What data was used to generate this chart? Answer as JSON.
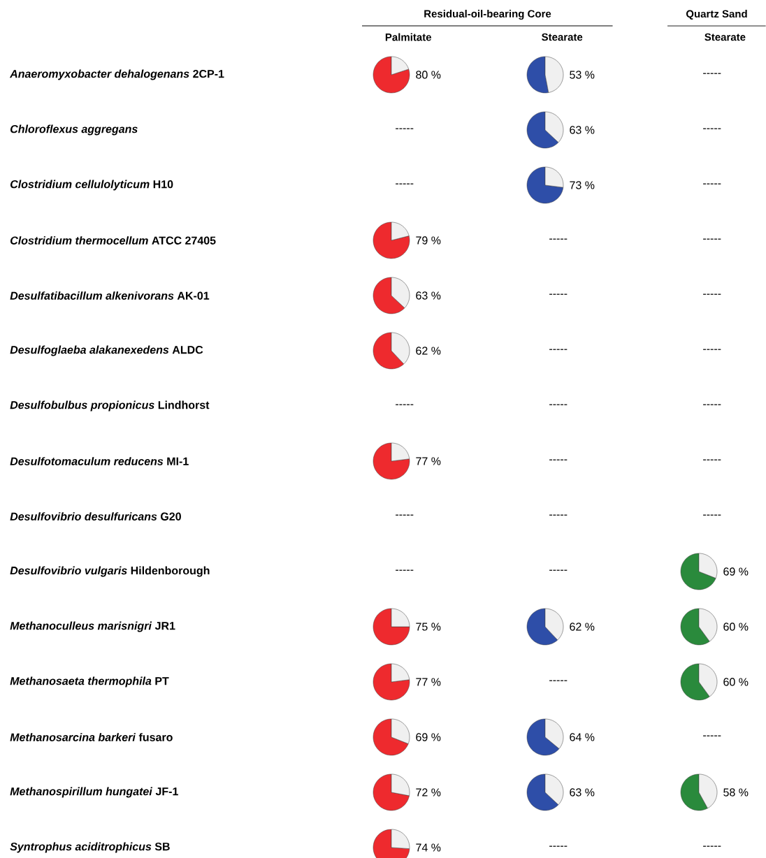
{
  "chart_data": [
    {
      "type": "other",
      "categories": [
        "Palmitate",
        "Stearate",
        "Stearate"
      ],
      "annotations": [
        "Residual-oil-bearing Core",
        "Quartz Sand"
      ],
      "y_categories": [
        "*Anaeromyxobacter dehalogenans* 2CP-1",
        "*Chloroflexus aggregans*",
        "*Clostridium cellulolyticum* H10",
        "*Clostridium thermocellum* ATCC 27405",
        "*Desulfatibacillum alkenivorans* AK-01",
        "*Desulfoglaeba alakanexedens* ALDC",
        "*Desulfobulbus propionicus* Lindhorst",
        "*Desulfotomaculum reducens* MI-1",
        "*Desulfovibrio desulfuricans* G20",
        "*Desulfovibrio vulgaris* Hildenborough",
        "*Methanoculleus marisnigri* JR1",
        "*Methanosaeta thermophila* PT",
        "*Methanosarcina barkeri* fusaro",
        "*Methanospirillum hungatei* JF-1",
        "*Syntrophus aciditrophicus* SB"
      ],
      "cell_labels": [
        [
          null,
          null,
          "-----"
        ],
        [
          "-----",
          null,
          "-----"
        ],
        [
          "-----",
          null,
          "-----"
        ],
        [
          null,
          "-----",
          "-----"
        ],
        [
          null,
          "-----",
          "-----"
        ],
        [
          null,
          "-----",
          "-----"
        ],
        [
          "-----",
          "-----",
          "-----"
        ],
        [
          null,
          "-----",
          "-----"
        ],
        [
          "-----",
          "-----",
          "-----"
        ],
        [
          "-----",
          "-----",
          null
        ],
        [
          null,
          null,
          null
        ],
        [
          null,
          "-----",
          null
        ],
        [
          null,
          null,
          "-----"
        ],
        [
          null,
          null,
          null
        ],
        [
          null,
          "-----",
          "-----"
        ]
      ]
    },
    {
      "type": "pie",
      "categories": [
        null,
        null
      ],
      "values": [
        80,
        20
      ],
      "colors": [
        "#ee2a2e",
        "#f0f0f0"
      ],
      "annotations": [
        "80 %"
      ]
    },
    {
      "type": "pie",
      "categories": [
        null,
        null
      ],
      "values": [
        53,
        47
      ],
      "colors": [
        "#2e4ea8",
        "#f0f0f0"
      ],
      "annotations": [
        "53 %"
      ]
    },
    {
      "type": "pie",
      "categories": [
        null,
        null
      ],
      "values": [
        63,
        37
      ],
      "colors": [
        "#2e4ea8",
        "#f0f0f0"
      ],
      "annotations": [
        "63 %"
      ]
    },
    {
      "type": "pie",
      "categories": [
        null,
        null
      ],
      "values": [
        73,
        27
      ],
      "colors": [
        "#2e4ea8",
        "#f0f0f0"
      ],
      "annotations": [
        "73 %"
      ]
    },
    {
      "type": "pie",
      "categories": [
        null,
        null
      ],
      "values": [
        79,
        21
      ],
      "colors": [
        "#ee2a2e",
        "#f0f0f0"
      ],
      "annotations": [
        "79 %"
      ]
    },
    {
      "type": "pie",
      "categories": [
        null,
        null
      ],
      "values": [
        63,
        37
      ],
      "colors": [
        "#ee2a2e",
        "#f0f0f0"
      ],
      "annotations": [
        "63 %"
      ]
    },
    {
      "type": "pie",
      "categories": [
        null,
        null
      ],
      "values": [
        62,
        38
      ],
      "colors": [
        "#ee2a2e",
        "#f0f0f0"
      ],
      "annotations": [
        "62 %"
      ]
    },
    {
      "type": "pie",
      "categories": [
        null,
        null
      ],
      "values": [
        77,
        23
      ],
      "colors": [
        "#ee2a2e",
        "#f0f0f0"
      ],
      "annotations": [
        "77 %"
      ]
    },
    {
      "type": "pie",
      "categories": [
        null,
        null
      ],
      "values": [
        69,
        31
      ],
      "colors": [
        "#2a8a3c",
        "#f0f0f0"
      ],
      "annotations": [
        "69 %"
      ]
    },
    {
      "type": "pie",
      "categories": [
        null,
        null
      ],
      "values": [
        75,
        25
      ],
      "colors": [
        "#ee2a2e",
        "#f0f0f0"
      ],
      "annotations": [
        "75 %"
      ]
    },
    {
      "type": "pie",
      "categories": [
        null,
        null
      ],
      "values": [
        62,
        38
      ],
      "colors": [
        "#2e4ea8",
        "#f0f0f0"
      ],
      "annotations": [
        "62 %"
      ]
    },
    {
      "type": "pie",
      "categories": [
        null,
        null
      ],
      "values": [
        60,
        40
      ],
      "colors": [
        "#2a8a3c",
        "#f0f0f0"
      ],
      "annotations": [
        "60 %"
      ]
    },
    {
      "type": "pie",
      "categories": [
        null,
        null
      ],
      "values": [
        77,
        23
      ],
      "colors": [
        "#ee2a2e",
        "#f0f0f0"
      ],
      "annotations": [
        "77 %"
      ]
    },
    {
      "type": "pie",
      "categories": [
        null,
        null
      ],
      "values": [
        60,
        40
      ],
      "colors": [
        "#2a8a3c",
        "#f0f0f0"
      ],
      "annotations": [
        "60 %"
      ]
    },
    {
      "type": "pie",
      "categories": [
        null,
        null
      ],
      "values": [
        69,
        31
      ],
      "colors": [
        "#ee2a2e",
        "#f0f0f0"
      ],
      "annotations": [
        "69 %"
      ]
    },
    {
      "type": "pie",
      "categories": [
        null,
        null
      ],
      "values": [
        64,
        36
      ],
      "colors": [
        "#2e4ea8",
        "#f0f0f0"
      ],
      "annotations": [
        "64 %"
      ]
    },
    {
      "type": "pie",
      "categories": [
        null,
        null
      ],
      "values": [
        72,
        28
      ],
      "colors": [
        "#ee2a2e",
        "#f0f0f0"
      ],
      "annotations": [
        "72 %"
      ]
    },
    {
      "type": "pie",
      "categories": [
        null,
        null
      ],
      "values": [
        63,
        37
      ],
      "colors": [
        "#2e4ea8",
        "#f0f0f0"
      ],
      "annotations": [
        "63 %"
      ]
    },
    {
      "type": "pie",
      "categories": [
        null,
        null
      ],
      "values": [
        58,
        42
      ],
      "colors": [
        "#2a8a3c",
        "#f0f0f0"
      ],
      "annotations": [
        "58 %"
      ]
    },
    {
      "type": "pie",
      "categories": [
        null,
        null
      ],
      "values": [
        74,
        26
      ],
      "colors": [
        "#ee2a2e",
        "#f0f0f0"
      ],
      "annotations": [
        "74 %"
      ]
    }
  ]
}
